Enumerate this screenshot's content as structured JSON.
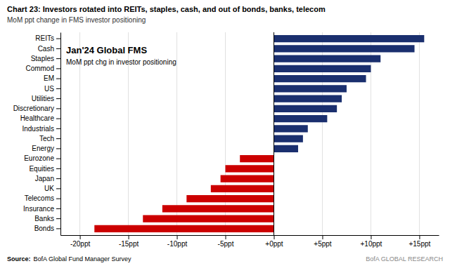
{
  "chart_data": {
    "type": "bar",
    "orientation": "horizontal",
    "title": "Chart 23: Investors rotated into REITs, staples, cash, and out of bonds, banks, telecom",
    "subtitle": "MoM ppt change in FMS investor positioning",
    "annotations": [
      "Jan'24 Global FMS",
      "MoM ppt chg in investor positioning"
    ],
    "source": [
      "Source:",
      "BofA Global Fund Manager Survey"
    ],
    "branding": "BofA GLOBAL RESEARCH",
    "categories": [
      "REITs",
      "Cash",
      "Staples",
      "Commod",
      "EM",
      "US",
      "Utilities",
      "Discretionary",
      "Healthcare",
      "Industrials",
      "Tech",
      "Energy",
      "Eurozone",
      "Equities",
      "Japan",
      "UK",
      "Telecoms",
      "Insurance",
      "Banks",
      "Bonds"
    ],
    "values": [
      15.5,
      14.5,
      11.0,
      10.0,
      9.5,
      7.5,
      7.0,
      6.5,
      5.5,
      3.5,
      3.0,
      2.5,
      -3.5,
      -5.0,
      -5.5,
      -6.5,
      -9.0,
      -11.5,
      -13.5,
      -18.5
    ],
    "colors": [
      "#1a2f6e",
      "#1a2f6e",
      "#1a2f6e",
      "#1a2f6e",
      "#1a2f6e",
      "#1a2f6e",
      "#1a2f6e",
      "#1a2f6e",
      "#1a2f6e",
      "#1a2f6e",
      "#1a2f6e",
      "#1a2f6e",
      "#cc0000",
      "#cc0000",
      "#cc0000",
      "#cc0000",
      "#cc0000",
      "#cc0000",
      "#cc0000",
      "#cc0000"
    ],
    "xlim": [
      -22,
      17
    ],
    "xticks": [
      {
        "value": -20,
        "label": "-20ppt"
      },
      {
        "value": -15,
        "label": "-15ppt"
      },
      {
        "value": -10,
        "label": "-10ppt"
      },
      {
        "value": -5,
        "label": "-5ppt"
      },
      {
        "value": 0,
        "label": "+0ppt"
      },
      {
        "value": 5,
        "label": "+5ppt"
      },
      {
        "value": 10,
        "label": "+10ppt"
      },
      {
        "value": 15,
        "label": "+15ppt"
      }
    ],
    "grid": true
  }
}
